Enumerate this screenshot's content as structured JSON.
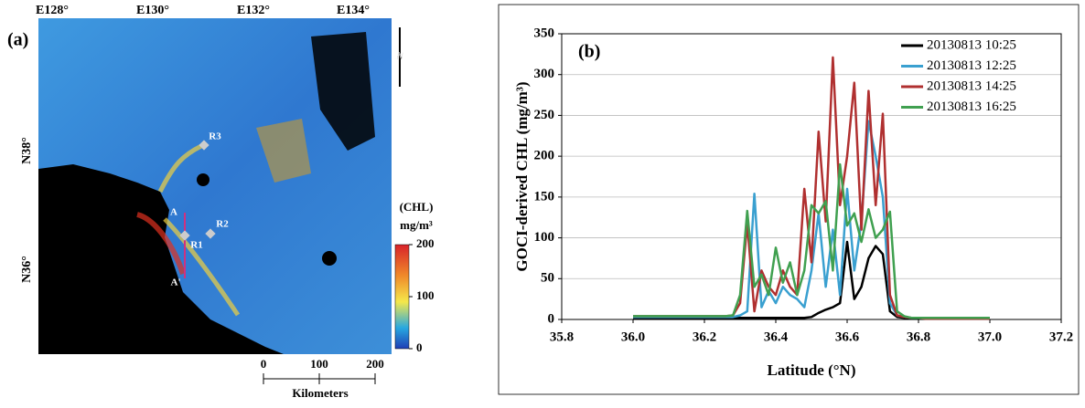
{
  "panel_a": {
    "label": "(a)",
    "lon_ticks": [
      "E128°",
      "E130°",
      "E132°",
      "E134°"
    ],
    "lat_ticks": [
      "N38°",
      "N36°"
    ],
    "north": "N",
    "colorbar": {
      "title": "(CHL)",
      "unit": "mg/m³",
      "ticks": [
        0,
        100,
        200
      ],
      "range": [
        0,
        200
      ]
    },
    "scalebar": {
      "ticks": [
        0,
        100,
        200
      ],
      "label": "Kilometers"
    },
    "points": [
      "R3",
      "R2",
      "R1",
      "A",
      "A'"
    ]
  },
  "chart_data": {
    "type": "line",
    "annotation": "(b)",
    "x_label": "Latitude (°N)",
    "y_label": "GOCI-derived CHL (mg/m³)",
    "x": [
      36.0,
      36.02,
      36.04,
      36.06,
      36.08,
      36.1,
      36.12,
      36.14,
      36.16,
      36.18,
      36.2,
      36.22,
      36.24,
      36.26,
      36.28,
      36.3,
      36.32,
      36.34,
      36.36,
      36.38,
      36.4,
      36.42,
      36.44,
      36.46,
      36.48,
      36.5,
      36.52,
      36.54,
      36.56,
      36.58,
      36.6,
      36.62,
      36.64,
      36.66,
      36.68,
      36.7,
      36.72,
      36.74,
      36.76,
      36.78,
      36.8,
      36.82,
      36.84,
      36.86,
      36.88,
      36.9,
      36.92,
      36.94,
      36.96,
      36.98,
      37.0
    ],
    "series": [
      {
        "name": "20130813 10:25",
        "color": "#000000",
        "values": [
          2,
          2,
          2,
          2,
          2,
          2,
          2,
          2,
          2,
          2,
          2,
          2,
          2,
          2,
          2,
          2,
          2,
          2,
          2,
          2,
          2,
          2,
          2,
          2,
          2,
          3,
          8,
          12,
          15,
          20,
          95,
          25,
          40,
          75,
          90,
          80,
          10,
          3,
          2,
          1,
          1,
          1,
          1,
          1,
          1,
          1,
          1,
          1,
          1,
          1,
          1
        ]
      },
      {
        "name": "20130813 12:25",
        "color": "#3aa0d0",
        "values": [
          3,
          3,
          3,
          3,
          3,
          3,
          3,
          3,
          3,
          3,
          3,
          3,
          3,
          3,
          3,
          5,
          10,
          154,
          15,
          35,
          20,
          40,
          30,
          25,
          15,
          60,
          130,
          40,
          110,
          30,
          160,
          60,
          120,
          243,
          200,
          150,
          20,
          5,
          3,
          2,
          2,
          2,
          2,
          2,
          2,
          2,
          2,
          2,
          2,
          2,
          2
        ]
      },
      {
        "name": "20130813 14:25",
        "color": "#b03030",
        "values": [
          4,
          4,
          4,
          4,
          4,
          4,
          4,
          4,
          4,
          4,
          4,
          4,
          4,
          4,
          5,
          20,
          118,
          10,
          60,
          40,
          30,
          60,
          40,
          30,
          160,
          70,
          230,
          120,
          321,
          140,
          200,
          290,
          110,
          280,
          140,
          252,
          30,
          5,
          3,
          2,
          2,
          1,
          1,
          1,
          1,
          1,
          1,
          1,
          1,
          1,
          1
        ]
      },
      {
        "name": "20130813 16:25",
        "color": "#40a050",
        "values": [
          4,
          4,
          4,
          4,
          4,
          4,
          4,
          4,
          4,
          4,
          4,
          4,
          4,
          4,
          5,
          30,
          133,
          40,
          55,
          30,
          88,
          45,
          70,
          30,
          60,
          140,
          130,
          145,
          60,
          190,
          115,
          130,
          95,
          135,
          100,
          110,
          132,
          10,
          4,
          2,
          2,
          2,
          2,
          2,
          2,
          2,
          2,
          2,
          2,
          2,
          2
        ]
      }
    ],
    "xlim": [
      35.8,
      37.2
    ],
    "xticks": [
      35.8,
      {
        "value": 36,
        "label": "36.0"
      },
      36.2,
      36.4,
      36.6,
      36.8,
      {
        "value": 37,
        "label": "37.0"
      },
      37.2
    ],
    "ylim": [
      0,
      350
    ],
    "yticks": [
      0,
      50,
      100,
      150,
      200,
      250,
      300,
      350
    ],
    "grid": true,
    "legend": "upper right"
  }
}
